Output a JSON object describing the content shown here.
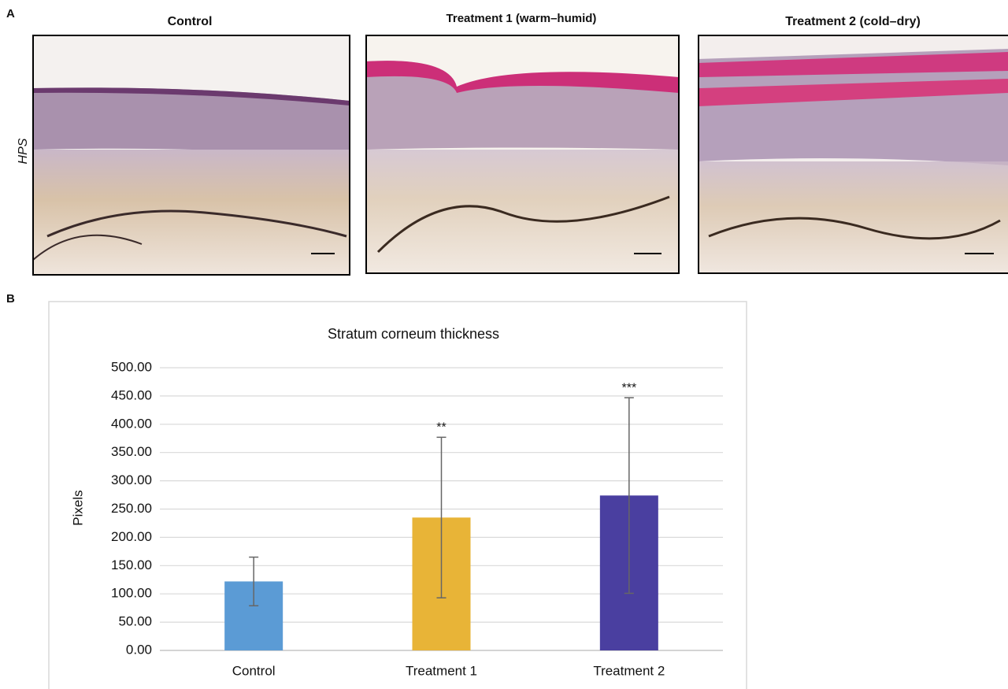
{
  "panel_a": {
    "label": "A",
    "stain_label": "HPS",
    "images": [
      {
        "title": "Control"
      },
      {
        "title": "Treatment 1 (warm–humid)"
      },
      {
        "title": "Treatment 2 (cold–dry)"
      }
    ]
  },
  "chart_data": {
    "type": "bar",
    "panel_label": "B",
    "title": "Stratum corneum thickness",
    "y_label": "Pixels",
    "categories": [
      "Control",
      "Treatment 1",
      "Treatment 2"
    ],
    "values": [
      122,
      235,
      274
    ],
    "errors": [
      43,
      142,
      173
    ],
    "colors": [
      "#5b9bd5",
      "#e8b437",
      "#4a3fa0"
    ],
    "annotations": [
      null,
      "**",
      "***"
    ],
    "ylim": [
      0,
      500
    ],
    "yticks": [
      {
        "value": 0,
        "label": "0.00"
      },
      {
        "value": 50,
        "label": "50.00"
      },
      {
        "value": 100,
        "label": "100.00"
      },
      {
        "value": 150,
        "label": "150.00"
      },
      {
        "value": 200,
        "label": "200.00"
      },
      {
        "value": 250,
        "label": "250.00"
      },
      {
        "value": 300,
        "label": "300.00"
      },
      {
        "value": 350,
        "label": "350.00"
      },
      {
        "value": 400,
        "label": "400.00"
      },
      {
        "value": 450,
        "label": "450.00"
      },
      {
        "value": 500,
        "label": "500.00"
      }
    ],
    "grid": true
  }
}
